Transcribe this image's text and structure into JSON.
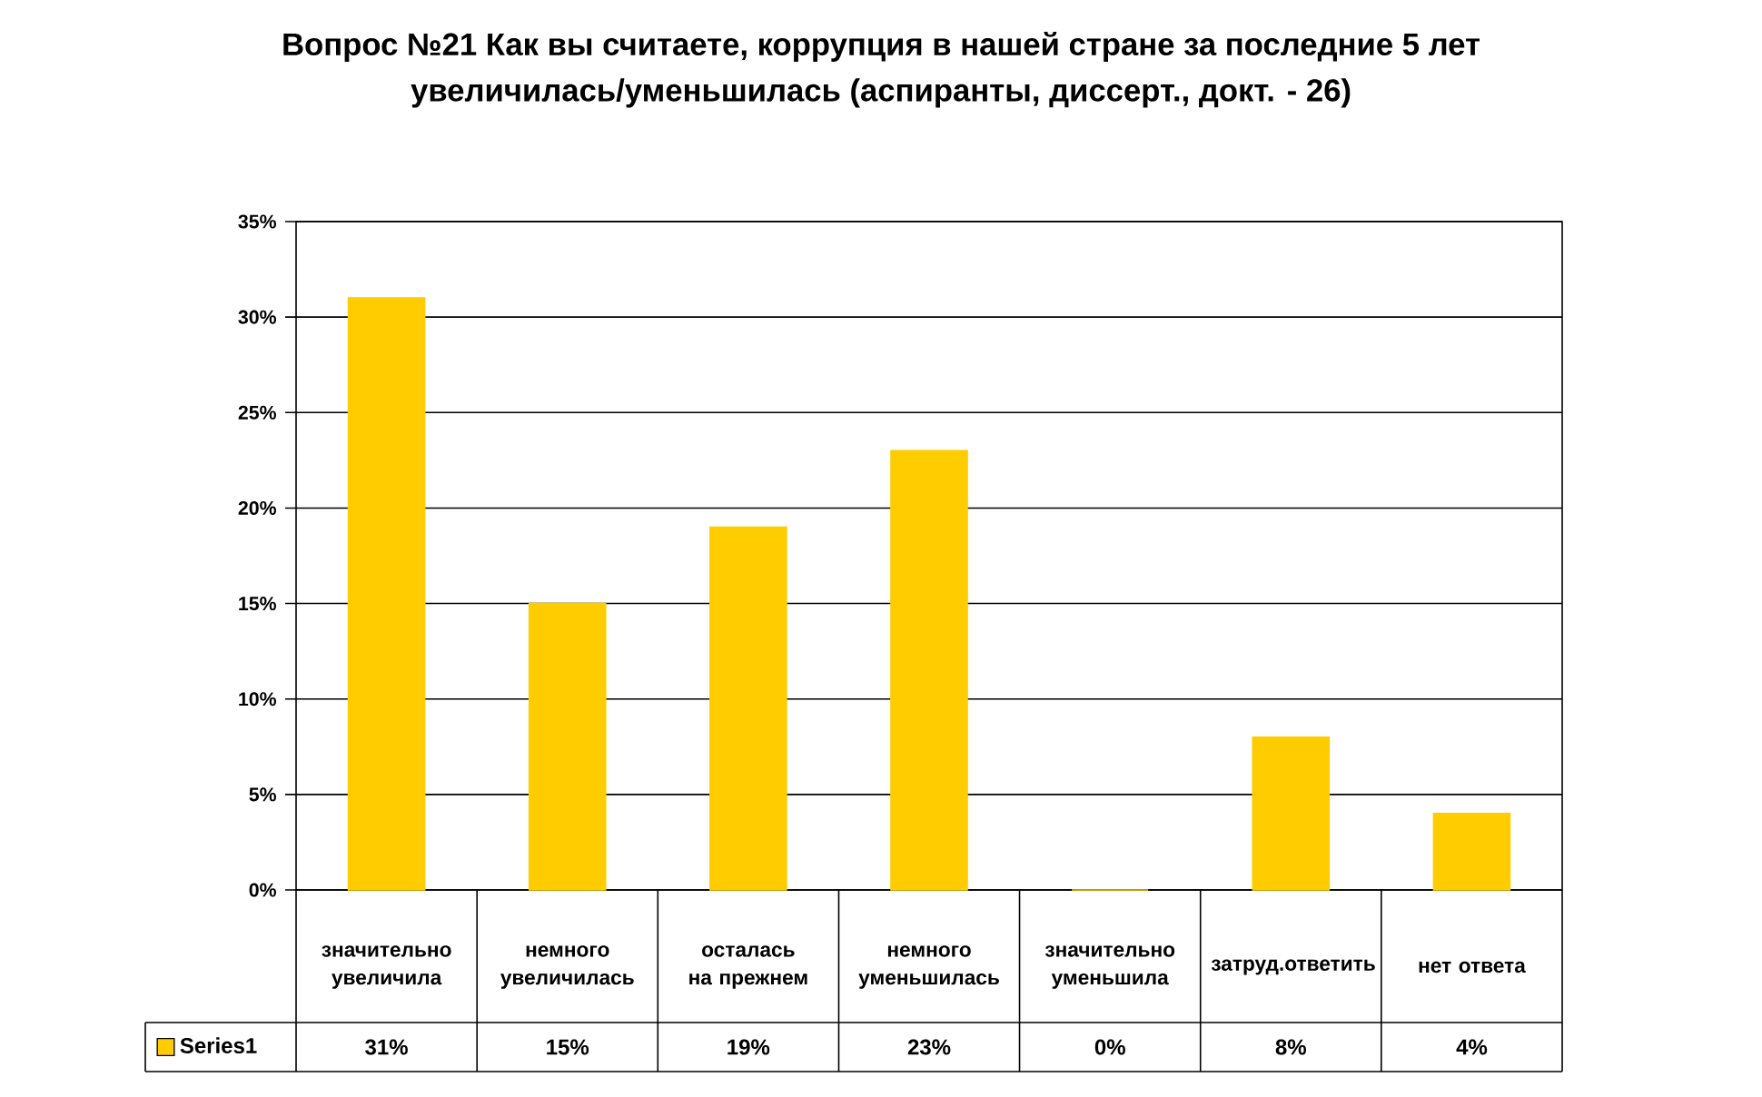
{
  "chart_data": {
    "type": "bar",
    "title": "Вопрос №21 Как вы считаете, коррупция в нашей стране за последние 5 лет увеличилась/уменьшилась (аспиранты, диссерт., докт. - 26)",
    "categories": [
      "значительно увеличила",
      "немного увеличилась",
      "осталась на прежнем",
      "немного уменьшилась",
      "значительно уменьшила",
      "затруд.ответить",
      "нет ответа"
    ],
    "series": [
      {
        "name": "Series1",
        "color": "#ffcc00",
        "values": [
          31,
          15,
          19,
          23,
          0,
          8,
          4
        ],
        "value_labels": [
          "31%",
          "15%",
          "19%",
          "23%",
          "0%",
          "8%",
          "4%"
        ]
      }
    ],
    "ylim": [
      0,
      35
    ],
    "yticks": [
      {
        "value": 0,
        "label": "0%"
      },
      {
        "value": 5,
        "label": "5%"
      },
      {
        "value": 10,
        "label": "10%"
      },
      {
        "value": 15,
        "label": "15%"
      },
      {
        "value": 20,
        "label": "20%"
      },
      {
        "value": 25,
        "label": "25%"
      },
      {
        "value": 30,
        "label": "30%"
      },
      {
        "value": 35,
        "label": "35%"
      }
    ],
    "grid": "y",
    "legend": "bottom"
  }
}
